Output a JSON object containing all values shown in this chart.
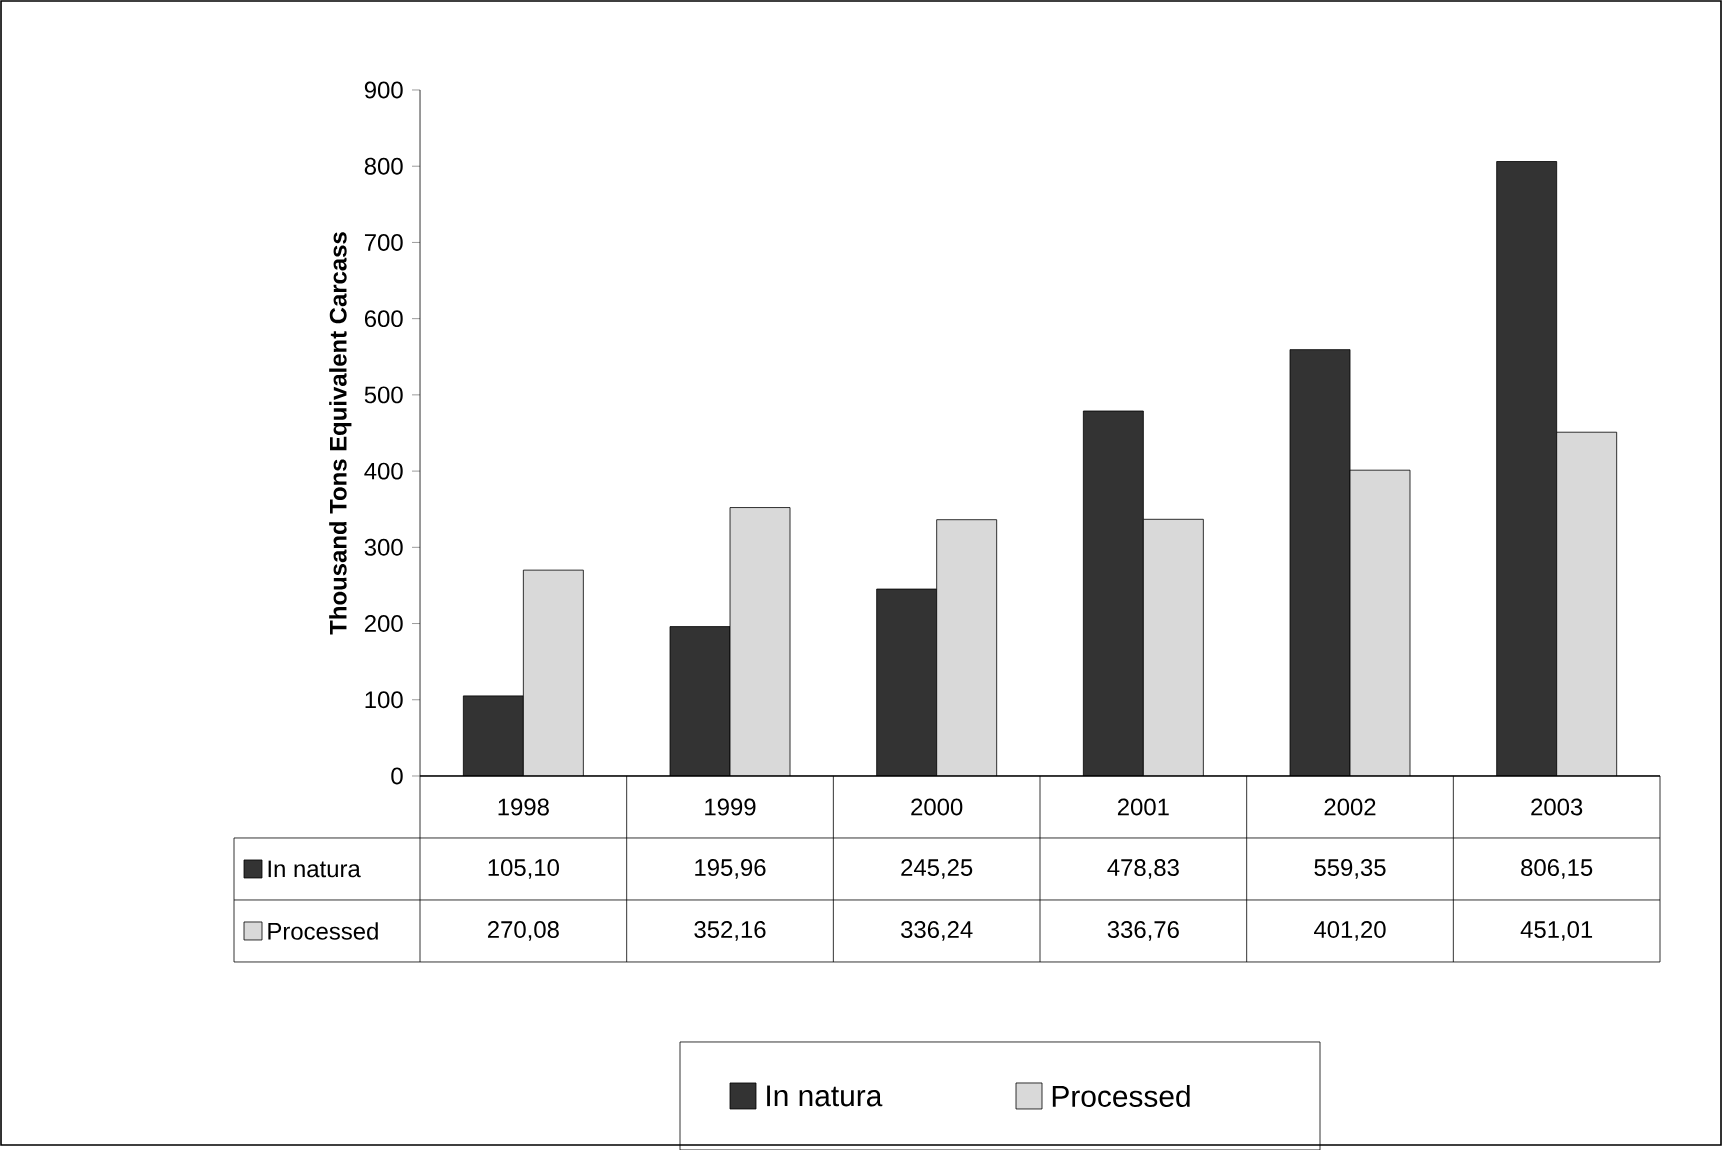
{
  "chart_data": {
    "type": "bar",
    "ylabel": "Thousand Tons Equivalent Carcass",
    "categories": [
      "1998",
      "1999",
      "2000",
      "2001",
      "2002",
      "2003"
    ],
    "series": [
      {
        "name": "In natura",
        "color": "#333333",
        "values": [
          105.1,
          195.96,
          245.25,
          478.83,
          559.35,
          806.15
        ],
        "value_labels": [
          "105,10",
          "195,96",
          "245,25",
          "478,83",
          "559,35",
          "806,15"
        ]
      },
      {
        "name": "Processed",
        "color": "#d9d9d9",
        "values": [
          270.08,
          352.16,
          336.24,
          336.76,
          401.2,
          451.01
        ],
        "value_labels": [
          "270,08",
          "352,16",
          "336,24",
          "336,76",
          "401,20",
          "451,01"
        ]
      }
    ],
    "ylim": [
      0,
      900
    ],
    "yticks": [
      0,
      100,
      200,
      300,
      400,
      500,
      600,
      700,
      800,
      900
    ],
    "grid": false,
    "legend": "bottom"
  }
}
